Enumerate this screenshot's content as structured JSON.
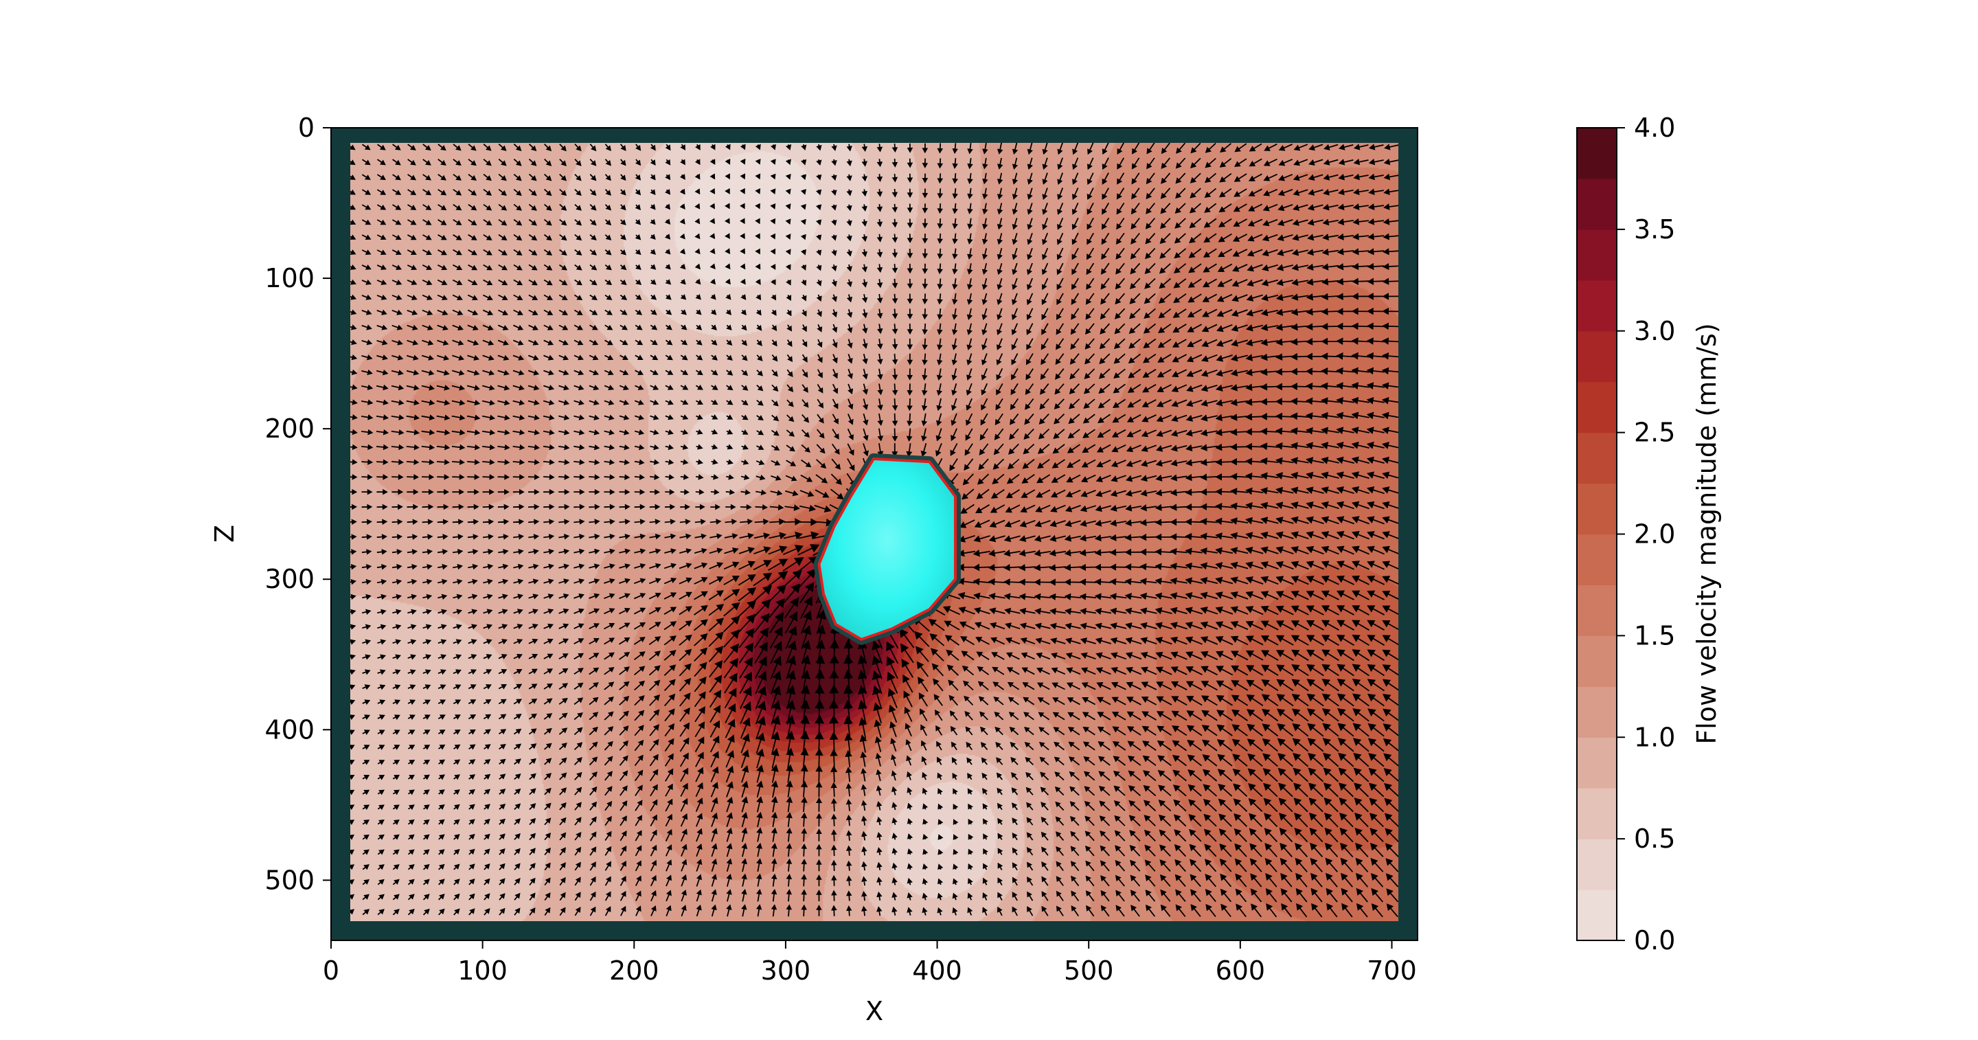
{
  "chart_data": {
    "type": "heatmap",
    "title": "",
    "xlabel": "X",
    "ylabel": "Z",
    "xlim": [
      0,
      717
    ],
    "ylim": [
      540,
      0
    ],
    "xticks": [
      "0",
      "100",
      "200",
      "300",
      "400",
      "500",
      "600",
      "700"
    ],
    "yticks": [
      "0",
      "100",
      "200",
      "300",
      "400",
      "500"
    ],
    "overlay": "quiver (flow velocity arrows) over filled contour of flow velocity magnitude",
    "colorbar": {
      "label": "Flow velocity magnitude (mm/s)",
      "range": [
        0.0,
        4.0
      ],
      "levels": 16,
      "ticks": [
        "0.0",
        "0.5",
        "1.0",
        "1.5",
        "2.0",
        "2.5",
        "3.0",
        "3.5",
        "4.0"
      ]
    },
    "frame_color": "#133a3a",
    "particle": {
      "center": [
        355,
        275
      ],
      "color": "#2ef5f0",
      "outline_color": "#e02020"
    },
    "flow_field": {
      "background_level": 0.8,
      "features": [
        {
          "kind": "low-speed region",
          "center": [
            310,
            40
          ],
          "peak_value": 0.2
        },
        {
          "kind": "low-speed region",
          "center": [
            258,
            220
          ],
          "peak_value": 0.2
        },
        {
          "kind": "low-speed region",
          "center": [
            400,
            470
          ],
          "peak_value": 0.2
        },
        {
          "kind": "high-speed region",
          "center": [
            320,
            355
          ],
          "peak_value": 3.9
        },
        {
          "kind": "high-speed region",
          "center": [
            660,
            400
          ],
          "peak_value": 2.0
        },
        {
          "kind": "high-speed region",
          "center": [
            640,
            150
          ],
          "peak_value": 1.6
        },
        {
          "kind": "moderate region",
          "center": [
            70,
            190
          ],
          "peak_value": 1.2
        }
      ]
    }
  }
}
